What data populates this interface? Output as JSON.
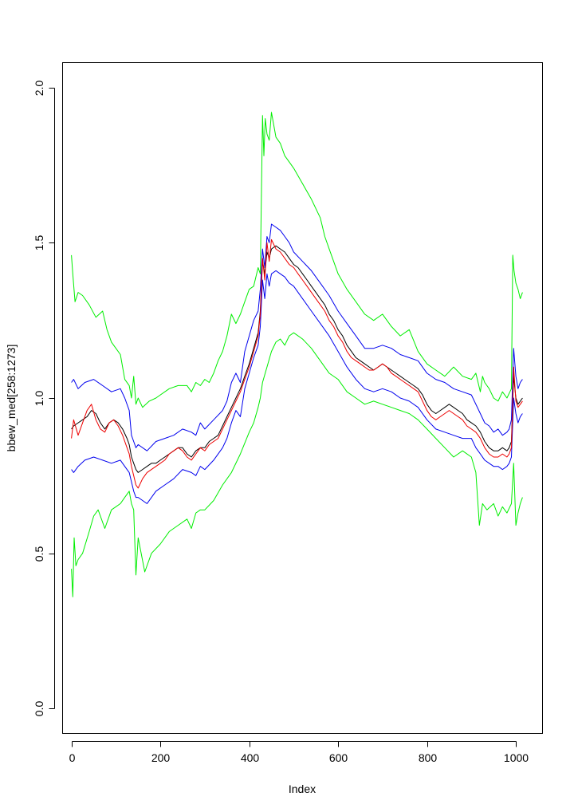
{
  "chart_data": {
    "type": "line",
    "title": "",
    "xlabel": "Index",
    "ylabel": "bbew_med[258:1273]",
    "xlim": [
      -20,
      1060
    ],
    "ylim": [
      -0.08,
      2.08
    ],
    "xticks": [
      0,
      200,
      400,
      600,
      800,
      1000
    ],
    "yticks": [
      0.0,
      0.5,
      1.0,
      1.5,
      2.0
    ],
    "xtick_labels": [
      "0",
      "200",
      "400",
      "600",
      "800",
      "1000"
    ],
    "ytick_labels": [
      "0.0",
      "0.5",
      "1.0",
      "1.5",
      "2.0"
    ],
    "grid": false,
    "legend": "none",
    "series": [
      {
        "color": "#00ee00",
        "x": [
          0,
          3,
          8,
          15,
          25,
          40,
          55,
          70,
          80,
          90,
          100,
          110,
          120,
          130,
          135,
          140,
          145,
          150,
          160,
          175,
          190,
          200,
          220,
          240,
          260,
          270,
          280,
          290,
          300,
          310,
          320,
          330,
          340,
          350,
          360,
          370,
          380,
          390,
          400,
          410,
          420,
          425,
          430,
          433,
          436,
          440,
          445,
          450,
          460,
          470,
          480,
          490,
          500,
          520,
          540,
          560,
          570,
          580,
          590,
          600,
          620,
          640,
          660,
          680,
          700,
          720,
          740,
          760,
          780,
          800,
          820,
          840,
          860,
          880,
          900,
          910,
          920,
          925,
          930,
          940,
          950,
          960,
          970,
          980,
          990,
          993,
          996,
          1000,
          1005,
          1010,
          1015
        ],
        "values": [
          1.46,
          1.4,
          1.31,
          1.34,
          1.33,
          1.3,
          1.26,
          1.28,
          1.22,
          1.18,
          1.16,
          1.14,
          1.06,
          1.04,
          1.0,
          1.07,
          0.98,
          1.0,
          0.97,
          0.99,
          1.0,
          1.01,
          1.03,
          1.04,
          1.04,
          1.02,
          1.05,
          1.04,
          1.06,
          1.05,
          1.08,
          1.12,
          1.15,
          1.2,
          1.27,
          1.24,
          1.27,
          1.31,
          1.35,
          1.36,
          1.42,
          1.4,
          1.91,
          1.78,
          1.9,
          1.85,
          1.83,
          1.92,
          1.84,
          1.82,
          1.78,
          1.76,
          1.74,
          1.69,
          1.64,
          1.58,
          1.52,
          1.48,
          1.44,
          1.4,
          1.35,
          1.31,
          1.27,
          1.25,
          1.27,
          1.23,
          1.2,
          1.22,
          1.15,
          1.11,
          1.09,
          1.07,
          1.1,
          1.07,
          1.06,
          1.08,
          1.02,
          1.07,
          1.05,
          1.03,
          1.0,
          0.99,
          1.02,
          1.0,
          1.03,
          1.46,
          1.41,
          1.37,
          1.35,
          1.32,
          1.34
        ]
      },
      {
        "color": "#00ee00",
        "x": [
          0,
          3,
          6,
          10,
          15,
          25,
          40,
          50,
          60,
          75,
          90,
          100,
          110,
          120,
          130,
          135,
          140,
          145,
          150,
          165,
          180,
          200,
          220,
          240,
          260,
          270,
          280,
          290,
          300,
          320,
          340,
          360,
          380,
          400,
          410,
          420,
          425,
          430,
          440,
          450,
          460,
          470,
          480,
          490,
          500,
          520,
          540,
          560,
          580,
          600,
          620,
          640,
          660,
          680,
          700,
          720,
          740,
          760,
          780,
          800,
          820,
          840,
          860,
          880,
          900,
          910,
          918,
          925,
          935,
          950,
          960,
          970,
          980,
          990,
          995,
          1000,
          1005,
          1010,
          1015
        ],
        "values": [
          0.45,
          0.36,
          0.55,
          0.46,
          0.48,
          0.5,
          0.57,
          0.62,
          0.64,
          0.58,
          0.64,
          0.65,
          0.66,
          0.68,
          0.7,
          0.66,
          0.64,
          0.43,
          0.55,
          0.44,
          0.5,
          0.53,
          0.57,
          0.59,
          0.61,
          0.58,
          0.63,
          0.64,
          0.64,
          0.67,
          0.72,
          0.76,
          0.82,
          0.89,
          0.92,
          0.97,
          1.0,
          1.05,
          1.1,
          1.15,
          1.18,
          1.19,
          1.17,
          1.2,
          1.21,
          1.19,
          1.16,
          1.12,
          1.08,
          1.06,
          1.02,
          1.0,
          0.98,
          0.99,
          0.98,
          0.97,
          0.96,
          0.95,
          0.93,
          0.9,
          0.87,
          0.84,
          0.81,
          0.83,
          0.81,
          0.76,
          0.59,
          0.66,
          0.64,
          0.66,
          0.62,
          0.65,
          0.63,
          0.66,
          0.79,
          0.59,
          0.63,
          0.66,
          0.68
        ]
      },
      {
        "color": "#0000ee",
        "x": [
          0,
          5,
          15,
          30,
          50,
          70,
          90,
          110,
          120,
          130,
          135,
          140,
          145,
          150,
          170,
          190,
          210,
          230,
          250,
          270,
          280,
          290,
          300,
          320,
          340,
          350,
          360,
          370,
          380,
          390,
          400,
          410,
          420,
          425,
          430,
          435,
          440,
          445,
          450,
          460,
          470,
          480,
          490,
          500,
          520,
          540,
          560,
          580,
          600,
          620,
          640,
          660,
          680,
          700,
          720,
          740,
          760,
          780,
          800,
          820,
          840,
          860,
          880,
          900,
          910,
          920,
          930,
          940,
          950,
          960,
          970,
          980,
          985,
          990,
          995,
          1000,
          1005,
          1010,
          1015
        ],
        "values": [
          1.05,
          1.06,
          1.03,
          1.05,
          1.06,
          1.04,
          1.02,
          1.03,
          1.0,
          0.96,
          0.88,
          0.86,
          0.84,
          0.85,
          0.83,
          0.86,
          0.87,
          0.88,
          0.9,
          0.89,
          0.88,
          0.92,
          0.9,
          0.93,
          0.96,
          0.99,
          1.05,
          1.08,
          1.05,
          1.15,
          1.2,
          1.25,
          1.28,
          1.35,
          1.48,
          1.42,
          1.52,
          1.5,
          1.56,
          1.55,
          1.54,
          1.52,
          1.5,
          1.47,
          1.44,
          1.41,
          1.37,
          1.33,
          1.28,
          1.24,
          1.2,
          1.16,
          1.16,
          1.17,
          1.16,
          1.14,
          1.13,
          1.12,
          1.08,
          1.06,
          1.05,
          1.03,
          1.02,
          1.01,
          0.98,
          0.95,
          0.92,
          0.91,
          0.89,
          0.9,
          0.88,
          0.89,
          0.9,
          0.93,
          1.16,
          1.07,
          1.03,
          1.05,
          1.06
        ]
      },
      {
        "color": "#0000ee",
        "x": [
          0,
          5,
          15,
          30,
          50,
          70,
          90,
          110,
          120,
          130,
          135,
          140,
          145,
          150,
          170,
          190,
          210,
          230,
          250,
          270,
          280,
          290,
          300,
          320,
          340,
          350,
          360,
          370,
          380,
          390,
          400,
          410,
          420,
          425,
          430,
          435,
          440,
          445,
          450,
          460,
          470,
          480,
          490,
          500,
          520,
          540,
          560,
          580,
          600,
          620,
          640,
          660,
          680,
          700,
          720,
          740,
          760,
          780,
          800,
          820,
          840,
          860,
          880,
          900,
          910,
          920,
          930,
          940,
          950,
          960,
          970,
          980,
          985,
          990,
          995,
          1000,
          1005,
          1010,
          1015
        ],
        "values": [
          0.77,
          0.76,
          0.78,
          0.8,
          0.81,
          0.8,
          0.79,
          0.8,
          0.78,
          0.76,
          0.73,
          0.7,
          0.68,
          0.68,
          0.66,
          0.7,
          0.72,
          0.74,
          0.77,
          0.76,
          0.75,
          0.78,
          0.77,
          0.8,
          0.84,
          0.87,
          0.92,
          0.96,
          0.94,
          1.03,
          1.08,
          1.13,
          1.17,
          1.23,
          1.38,
          1.32,
          1.4,
          1.36,
          1.4,
          1.41,
          1.4,
          1.39,
          1.37,
          1.36,
          1.32,
          1.28,
          1.24,
          1.2,
          1.15,
          1.1,
          1.06,
          1.03,
          1.02,
          1.03,
          1.02,
          1.0,
          0.99,
          0.97,
          0.93,
          0.9,
          0.89,
          0.88,
          0.87,
          0.87,
          0.84,
          0.82,
          0.8,
          0.79,
          0.78,
          0.78,
          0.77,
          0.78,
          0.79,
          0.81,
          1.0,
          0.95,
          0.92,
          0.94,
          0.95
        ]
      },
      {
        "color": "#000000",
        "x": [
          0,
          5,
          15,
          25,
          35,
          45,
          55,
          65,
          75,
          85,
          95,
          105,
          115,
          125,
          130,
          135,
          140,
          145,
          150,
          160,
          170,
          180,
          190,
          200,
          210,
          220,
          230,
          240,
          250,
          260,
          270,
          280,
          290,
          300,
          310,
          320,
          330,
          340,
          350,
          360,
          370,
          380,
          390,
          400,
          410,
          420,
          425,
          430,
          435,
          440,
          445,
          450,
          460,
          470,
          480,
          490,
          500,
          510,
          520,
          530,
          540,
          550,
          560,
          570,
          580,
          590,
          600,
          610,
          620,
          630,
          640,
          650,
          660,
          670,
          680,
          690,
          700,
          710,
          720,
          730,
          740,
          750,
          760,
          770,
          780,
          790,
          800,
          810,
          820,
          830,
          840,
          850,
          860,
          870,
          880,
          890,
          900,
          910,
          920,
          930,
          940,
          950,
          960,
          970,
          980,
          985,
          990,
          995,
          1000,
          1005,
          1010,
          1015
        ],
        "values": [
          0.9,
          0.91,
          0.92,
          0.93,
          0.94,
          0.96,
          0.95,
          0.92,
          0.9,
          0.92,
          0.93,
          0.92,
          0.9,
          0.87,
          0.85,
          0.81,
          0.79,
          0.77,
          0.76,
          0.77,
          0.78,
          0.79,
          0.79,
          0.8,
          0.81,
          0.82,
          0.83,
          0.84,
          0.84,
          0.82,
          0.81,
          0.83,
          0.84,
          0.84,
          0.86,
          0.87,
          0.88,
          0.91,
          0.94,
          0.97,
          1.0,
          1.03,
          1.07,
          1.11,
          1.16,
          1.21,
          1.28,
          1.44,
          1.4,
          1.47,
          1.45,
          1.48,
          1.49,
          1.48,
          1.47,
          1.45,
          1.43,
          1.42,
          1.4,
          1.38,
          1.36,
          1.34,
          1.32,
          1.3,
          1.27,
          1.25,
          1.22,
          1.2,
          1.17,
          1.15,
          1.13,
          1.12,
          1.11,
          1.1,
          1.09,
          1.1,
          1.11,
          1.1,
          1.09,
          1.08,
          1.07,
          1.06,
          1.05,
          1.04,
          1.03,
          1.01,
          0.98,
          0.96,
          0.95,
          0.96,
          0.97,
          0.98,
          0.97,
          0.96,
          0.95,
          0.93,
          0.92,
          0.91,
          0.89,
          0.86,
          0.84,
          0.83,
          0.83,
          0.84,
          0.83,
          0.84,
          0.86,
          1.07,
          1.0,
          0.98,
          0.99,
          1.0
        ]
      },
      {
        "color": "#ee0000",
        "x": [
          0,
          5,
          15,
          25,
          35,
          45,
          55,
          65,
          75,
          85,
          95,
          105,
          115,
          125,
          130,
          135,
          140,
          145,
          150,
          160,
          170,
          180,
          190,
          200,
          210,
          220,
          230,
          240,
          250,
          260,
          270,
          280,
          290,
          300,
          310,
          320,
          330,
          340,
          350,
          360,
          370,
          380,
          390,
          400,
          410,
          420,
          425,
          430,
          435,
          440,
          445,
          450,
          460,
          470,
          480,
          490,
          500,
          510,
          520,
          530,
          540,
          550,
          560,
          570,
          580,
          590,
          600,
          610,
          620,
          630,
          640,
          650,
          660,
          670,
          680,
          690,
          700,
          710,
          720,
          730,
          740,
          750,
          760,
          770,
          780,
          790,
          800,
          810,
          820,
          830,
          840,
          850,
          860,
          870,
          880,
          890,
          900,
          910,
          920,
          930,
          940,
          950,
          960,
          970,
          980,
          985,
          990,
          995,
          1000,
          1005,
          1010,
          1015
        ],
        "values": [
          0.87,
          0.93,
          0.88,
          0.92,
          0.96,
          0.98,
          0.93,
          0.9,
          0.89,
          0.92,
          0.93,
          0.91,
          0.88,
          0.84,
          0.82,
          0.78,
          0.75,
          0.72,
          0.71,
          0.74,
          0.76,
          0.77,
          0.78,
          0.79,
          0.8,
          0.82,
          0.83,
          0.84,
          0.83,
          0.81,
          0.8,
          0.82,
          0.84,
          0.83,
          0.85,
          0.86,
          0.87,
          0.9,
          0.93,
          0.96,
          0.99,
          1.02,
          1.06,
          1.1,
          1.15,
          1.2,
          1.27,
          1.45,
          1.38,
          1.5,
          1.44,
          1.51,
          1.48,
          1.47,
          1.45,
          1.43,
          1.42,
          1.4,
          1.38,
          1.36,
          1.34,
          1.32,
          1.3,
          1.28,
          1.25,
          1.23,
          1.2,
          1.18,
          1.15,
          1.13,
          1.12,
          1.11,
          1.1,
          1.09,
          1.09,
          1.1,
          1.11,
          1.1,
          1.08,
          1.07,
          1.06,
          1.05,
          1.04,
          1.03,
          1.02,
          0.99,
          0.96,
          0.94,
          0.93,
          0.94,
          0.95,
          0.96,
          0.95,
          0.94,
          0.93,
          0.91,
          0.9,
          0.89,
          0.87,
          0.84,
          0.82,
          0.81,
          0.81,
          0.82,
          0.81,
          0.82,
          0.84,
          1.1,
          0.99,
          0.97,
          0.98,
          0.99
        ]
      }
    ]
  }
}
